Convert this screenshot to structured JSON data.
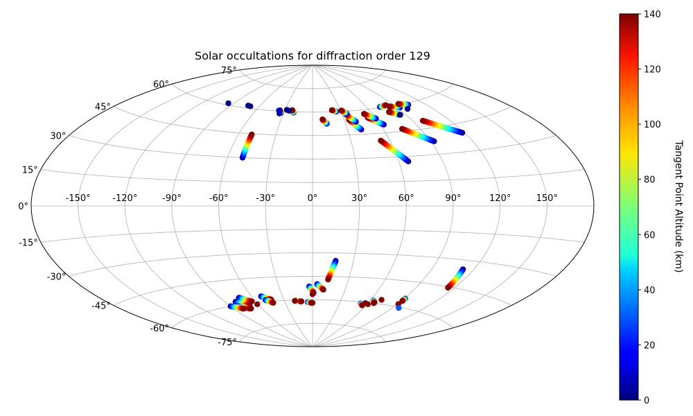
{
  "chart_data": {
    "type": "scatter",
    "projection": "aitoff",
    "title": "Solar occultations for diffraction order 129",
    "longitude_ticks": [
      {
        "value": -150,
        "label": "-150°"
      },
      {
        "value": -120,
        "label": "-120°"
      },
      {
        "value": -90,
        "label": "-90°"
      },
      {
        "value": -60,
        "label": "-60°"
      },
      {
        "value": -30,
        "label": "-30°"
      },
      {
        "value": 0,
        "label": "0°"
      },
      {
        "value": 30,
        "label": "30°"
      },
      {
        "value": 60,
        "label": "60°"
      },
      {
        "value": 90,
        "label": "90°"
      },
      {
        "value": 120,
        "label": "120°"
      },
      {
        "value": 150,
        "label": "150°"
      }
    ],
    "latitude_ticks": [
      {
        "value": 75,
        "label": "75°"
      },
      {
        "value": 60,
        "label": "60°"
      },
      {
        "value": 45,
        "label": "45°"
      },
      {
        "value": 30,
        "label": "30°"
      },
      {
        "value": 15,
        "label": "15°"
      },
      {
        "value": 0,
        "label": "0°"
      },
      {
        "value": -15,
        "label": "-15°"
      },
      {
        "value": -30,
        "label": "-30°"
      },
      {
        "value": -45,
        "label": "-45°"
      },
      {
        "value": -60,
        "label": "-60°"
      },
      {
        "value": -75,
        "label": "-75°"
      }
    ],
    "xlim": [
      -180,
      180
    ],
    "ylim": [
      -90,
      90
    ],
    "grid": true,
    "colorbar": {
      "label": "Tangent Point Altitude (km)",
      "colormap": "jet",
      "range": [
        0,
        140
      ],
      "ticks": [
        {
          "value": 0,
          "label": "0"
        },
        {
          "value": 20,
          "label": "20"
        },
        {
          "value": 40,
          "label": "40"
        },
        {
          "value": 60,
          "label": "60"
        },
        {
          "value": 80,
          "label": "80"
        },
        {
          "value": 100,
          "label": "100"
        },
        {
          "value": 120,
          "label": "120"
        },
        {
          "value": 140,
          "label": "140"
        }
      ]
    },
    "tracks": [
      {
        "lon_start": -49.5,
        "lat_start": 30.0,
        "lon_end": -49.5,
        "lat_end": 44.5,
        "alt_start": 0,
        "alt_end": 140
      },
      {
        "lon_start": 13.0,
        "lat_start": 52.5,
        "lon_end": 9.5,
        "lat_end": 55.3,
        "alt_start": 0,
        "alt_end": 140
      },
      {
        "lon_start": 41.5,
        "lat_start": 48.0,
        "lon_end": 34.5,
        "lat_end": 54.5,
        "alt_start": 0,
        "alt_end": 140
      },
      {
        "lon_start": 40.0,
        "lat_start": 53.0,
        "lon_end": 34.0,
        "lat_end": 58.0,
        "alt_start": 0,
        "alt_end": 140
      },
      {
        "lon_start": 63.0,
        "lat_start": 50.0,
        "lon_end": 53.0,
        "lat_end": 55.0,
        "alt_start": 0,
        "alt_end": 140
      },
      {
        "lon_start": 60.0,
        "lat_start": 54.0,
        "lon_end": 52.0,
        "lat_end": 57.5,
        "alt_start": 0,
        "alt_end": 140
      },
      {
        "lon_start": 66.5,
        "lat_start": 27.0,
        "lon_end": 53.0,
        "lat_end": 40.5,
        "alt_start": 0,
        "alt_end": 140
      },
      {
        "lon_start": 92.5,
        "lat_start": 37.5,
        "lon_end": 75.5,
        "lat_end": 46.5,
        "alt_start": 0,
        "alt_end": 140
      },
      {
        "lon_start": 118.5,
        "lat_start": 40.0,
        "lon_end": 98.5,
        "lat_end": 49.5,
        "alt_start": 0,
        "alt_end": 140
      },
      {
        "lon_start": 85.0,
        "lat_start": 54.5,
        "lon_end": 77.5,
        "lat_end": 57.0,
        "alt_start": 0,
        "alt_end": 140
      },
      {
        "lon_start": 93.0,
        "lat_start": 58.5,
        "lon_end": 84.0,
        "lat_end": 60.0,
        "alt_start": 0,
        "alt_end": 140
      },
      {
        "lon_start": 104.0,
        "lat_start": 59.0,
        "lon_end": 96.0,
        "lat_end": 60.5,
        "alt_start": 0,
        "alt_end": 140
      },
      {
        "lon_start": 74.0,
        "lat_start": 60.5,
        "lon_end": 82.0,
        "lat_end": 61.0,
        "alt_start": 0,
        "alt_end": 140
      },
      {
        "lon_start": 25.0,
        "lat_start": 60.0,
        "lon_end": 21.0,
        "lat_end": 61.0,
        "alt_start": 0,
        "alt_end": 140
      },
      {
        "lon_start": 35.0,
        "lat_start": 58.5,
        "lon_end": 31.0,
        "lat_end": 60.5,
        "alt_start": 0,
        "alt_end": 140
      },
      {
        "lon_start": -33.0,
        "lat_start": 59.0,
        "lon_end": -35.0,
        "lat_end": 60.5,
        "alt_start": 0,
        "alt_end": 140
      },
      {
        "lon_start": -20.0,
        "lat_start": 59.5,
        "lon_end": -22.0,
        "lat_end": 61.0,
        "alt_start": 0,
        "alt_end": 140
      },
      {
        "lon_start": 17.0,
        "lat_start": -35.0,
        "lon_end": 13.0,
        "lat_end": -47.0,
        "alt_start": 0,
        "alt_end": 140
      },
      {
        "lon_start": 112.5,
        "lat_start": -35.0,
        "lon_end": 115.0,
        "lat_end": -45.5,
        "alt_start": 0,
        "alt_end": 140
      },
      {
        "lon_start": -3.0,
        "lat_start": -51.5,
        "lon_end": 1.0,
        "lat_end": -55.5,
        "alt_start": 0,
        "alt_end": 140
      },
      {
        "lon_start": 4.0,
        "lat_start": -50.0,
        "lon_end": 10.0,
        "lat_end": -53.5,
        "alt_start": 0,
        "alt_end": 140
      },
      {
        "lon_start": -73.0,
        "lat_start": -56.0,
        "lon_end": -64.0,
        "lat_end": -59.0,
        "alt_start": 0,
        "alt_end": 140
      },
      {
        "lon_start": -80.0,
        "lat_start": -58.0,
        "lon_end": -70.0,
        "lat_end": -61.0,
        "alt_start": 0,
        "alt_end": 140
      },
      {
        "lon_start": -51.0,
        "lat_start": -56.5,
        "lon_end": -43.0,
        "lat_end": -59.0,
        "alt_start": 0,
        "alt_end": 140
      },
      {
        "lon_start": -49.0,
        "lat_start": -59.0,
        "lon_end": -43.0,
        "lat_end": -61.0,
        "alt_start": 0,
        "alt_end": 140
      },
      {
        "lon_start": -83.0,
        "lat_start": -60.5,
        "lon_end": -73.0,
        "lat_end": -63.0,
        "alt_start": 0,
        "alt_end": 140
      },
      {
        "lon_start": -90.0,
        "lat_start": -60.0,
        "lon_end": -80.0,
        "lat_end": -62.5,
        "alt_start": 0,
        "alt_end": 140
      },
      {
        "lon_start": -18.5,
        "lat_start": -60.5,
        "lon_end": -12.0,
        "lat_end": -61.0,
        "alt_start": 0,
        "alt_end": 140
      },
      {
        "lon_start": -5.0,
        "lat_start": -61.5,
        "lon_end": -1.0,
        "lat_end": -62.0,
        "alt_start": 0,
        "alt_end": 140
      },
      {
        "lon_start": 53.0,
        "lat_start": -61.0,
        "lon_end": 56.0,
        "lat_end": -62.0,
        "alt_start": 0,
        "alt_end": 140
      },
      {
        "lon_start": 63.5,
        "lat_start": -58.5,
        "lon_end": 66.0,
        "lat_end": -59.5,
        "alt_start": 0,
        "alt_end": 140
      },
      {
        "lon_start": 91.0,
        "lat_start": -55.0,
        "lon_end": 91.0,
        "lat_end": -56.5,
        "alt_start": 0,
        "alt_end": 140
      }
    ],
    "isolated_points": [
      {
        "lon": -95.5,
        "lat": 61.0,
        "alt": 0
      },
      {
        "lon": -72.5,
        "lat": 61.5,
        "alt": 0
      },
      {
        "lon": -69.5,
        "lat": 61.3,
        "alt": 0
      },
      {
        "lon": -28.0,
        "lat": 61.0,
        "alt": 0
      },
      {
        "lon": -25.0,
        "lat": 60.5,
        "alt": 0
      },
      {
        "lon": -34.0,
        "lat": 58.5,
        "alt": 0
      },
      {
        "lon": -36.0,
        "lat": 60.3,
        "alt": 10
      },
      {
        "lon": 84.5,
        "lat": 54.5,
        "alt": 0
      },
      {
        "lon": 98.0,
        "lat": 57.0,
        "alt": 0
      },
      {
        "lon": -61.0,
        "lat": -61.0,
        "alt": 140
      },
      {
        "lon": -19.0,
        "lat": -60.5,
        "alt": 140
      },
      {
        "lon": 0.0,
        "lat": -56.5,
        "alt": 140
      },
      {
        "lon": 0.0,
        "lat": -62.0,
        "alt": 140
      },
      {
        "lon": 57.5,
        "lat": -60.5,
        "alt": 140
      },
      {
        "lon": 61.0,
        "lat": -61.0,
        "alt": 140
      },
      {
        "lon": 66.0,
        "lat": -60.0,
        "alt": 140
      },
      {
        "lon": 70.5,
        "lat": -57.5,
        "alt": 140
      },
      {
        "lon": 91.0,
        "lat": -58.5,
        "alt": 140
      },
      {
        "lon": 96.5,
        "lat": -60.5,
        "alt": 30
      },
      {
        "lon": -72.0,
        "lat": -63.0,
        "alt": 140
      }
    ]
  }
}
